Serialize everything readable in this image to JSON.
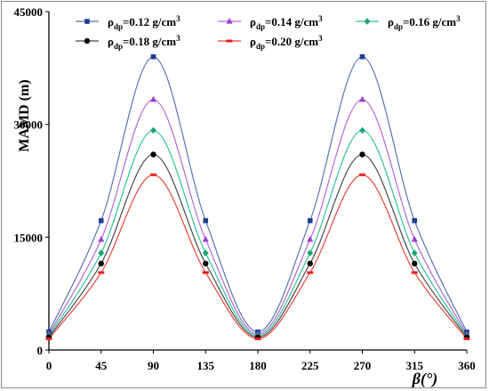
{
  "chart_data": {
    "type": "line",
    "xlabel": "β(°)",
    "ylabel": "MAMD (m)",
    "xlim": [
      0,
      360
    ],
    "ylim": [
      0,
      45000
    ],
    "x_ticks": [
      0,
      45,
      90,
      135,
      180,
      225,
      270,
      315,
      360
    ],
    "y_ticks": [
      0,
      15000,
      30000,
      45000
    ],
    "grid": false,
    "legend_position": "top",
    "x": [
      0,
      45,
      90,
      135,
      180,
      225,
      270,
      315,
      360
    ],
    "series": [
      {
        "name": "ρdp=0.12 g/cm3",
        "sym": "ρ",
        "sub": "dp",
        "val": "=0.12 g/cm",
        "sup": "3",
        "marker": "square",
        "color": "#5a74b0",
        "marker_color": "#1f3f8f",
        "values": [
          2400,
          17200,
          39000,
          17200,
          2400,
          17200,
          39000,
          17200,
          2400
        ]
      },
      {
        "name": "ρdp=0.14 g/cm3",
        "sym": "ρ",
        "sub": "dp",
        "val": "=0.14 g/cm",
        "sup": "3",
        "marker": "triangle",
        "color": "#b36ad6",
        "marker_color": "#9a3fd0",
        "values": [
          2100,
          14700,
          33300,
          14700,
          2100,
          14700,
          33300,
          14700,
          2100
        ]
      },
      {
        "name": "ρdp=0.16 g/cm3",
        "sym": "ρ",
        "sub": "dp",
        "val": "=0.16 g/cm",
        "sup": "3",
        "marker": "diamond",
        "color": "#33c49a",
        "marker_color": "#17a67a",
        "values": [
          1900,
          12900,
          29200,
          12900,
          1900,
          12900,
          29200,
          12900,
          1900
        ]
      },
      {
        "name": "ρdp=0.18 g/cm3",
        "sym": "ρ",
        "sub": "dp",
        "val": "=0.18 g/cm",
        "sup": "3",
        "marker": "circle",
        "color": "#4a4a4a",
        "marker_color": "#000000",
        "values": [
          1700,
          11500,
          26000,
          11500,
          1700,
          11500,
          26000,
          11500,
          1700
        ]
      },
      {
        "name": "ρdp=0.20 g/cm3",
        "sym": "ρ",
        "sub": "dp",
        "val": "=0.20 g/cm",
        "sup": "3",
        "marker": "dash",
        "color": "#e8453c",
        "marker_color": "#e82020",
        "values": [
          1500,
          10300,
          23300,
          10300,
          1500,
          10300,
          23300,
          10300,
          1500
        ]
      }
    ]
  }
}
